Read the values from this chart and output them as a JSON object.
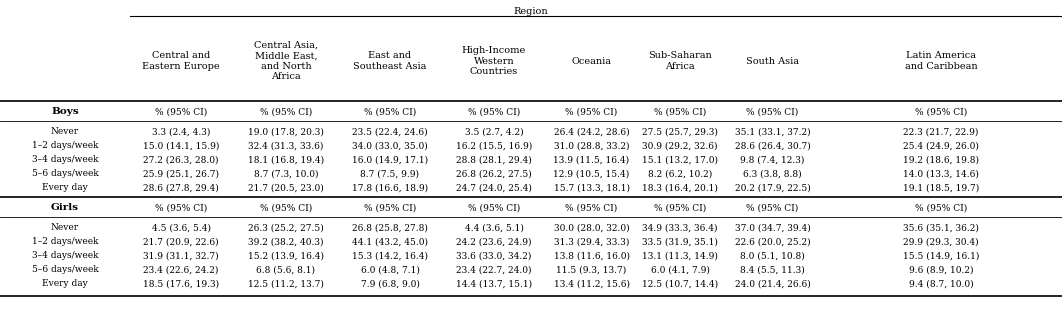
{
  "title": "Region",
  "col_headers": [
    "",
    "Central and\nEastern Europe",
    "Central Asia,\nMiddle East,\nand North\nAfrica",
    "East and\nSoutheast Asia",
    "High-Income\nWestern\nCountries",
    "Oceania",
    "Sub-Saharan\nAfrica",
    "South Asia",
    "Latin America\nand Caribbean"
  ],
  "unit_row": "% (95% CI)",
  "boys_rows": [
    [
      "Never",
      "3.3 (2.4, 4.3)",
      "19.0 (17.8, 20.3)",
      "23.5 (22.4, 24.6)",
      "3.5 (2.7, 4.2)",
      "26.4 (24.2, 28.6)",
      "27.5 (25.7, 29.3)",
      "35.1 (33.1, 37.2)",
      "22.3 (21.7, 22.9)"
    ],
    [
      "1–2 days/week",
      "15.0 (14.1, 15.9)",
      "32.4 (31.3, 33.6)",
      "34.0 (33.0, 35.0)",
      "16.2 (15.5, 16.9)",
      "31.0 (28.8, 33.2)",
      "30.9 (29.2, 32.6)",
      "28.6 (26.4, 30.7)",
      "25.4 (24.9, 26.0)"
    ],
    [
      "3–4 days/week",
      "27.2 (26.3, 28.0)",
      "18.1 (16.8, 19.4)",
      "16.0 (14.9, 17.1)",
      "28.8 (28.1, 29.4)",
      "13.9 (11.5, 16.4)",
      "15.1 (13.2, 17.0)",
      "9.8 (7.4, 12.3)",
      "19.2 (18.6, 19.8)"
    ],
    [
      "5–6 days/week",
      "25.9 (25.1, 26.7)",
      "8.7 (7.3, 10.0)",
      "8.7 (7.5, 9.9)",
      "26.8 (26.2, 27.5)",
      "12.9 (10.5, 15.4)",
      "8.2 (6.2, 10.2)",
      "6.3 (3.8, 8.8)",
      "14.0 (13.3, 14.6)"
    ],
    [
      "Every day",
      "28.6 (27.8, 29.4)",
      "21.7 (20.5, 23.0)",
      "17.8 (16.6, 18.9)",
      "24.7 (24.0, 25.4)",
      "15.7 (13.3, 18.1)",
      "18.3 (16.4, 20.1)",
      "20.2 (17.9, 22.5)",
      "19.1 (18.5, 19.7)"
    ]
  ],
  "girls_rows": [
    [
      "Never",
      "4.5 (3.6, 5.4)",
      "26.3 (25.2, 27.5)",
      "26.8 (25.8, 27.8)",
      "4.4 (3.6, 5.1)",
      "30.0 (28.0, 32.0)",
      "34.9 (33.3, 36.4)",
      "37.0 (34.7, 39.4)",
      "35.6 (35.1, 36.2)"
    ],
    [
      "1–2 days/week",
      "21.7 (20.9, 22.6)",
      "39.2 (38.2, 40.3)",
      "44.1 (43.2, 45.0)",
      "24.2 (23.6, 24.9)",
      "31.3 (29.4, 33.3)",
      "33.5 (31.9, 35.1)",
      "22.6 (20.0, 25.2)",
      "29.9 (29.3, 30.4)"
    ],
    [
      "3–4 days/week",
      "31.9 (31.1, 32.7)",
      "15.2 (13.9, 16.4)",
      "15.3 (14.2, 16.4)",
      "33.6 (33.0, 34.2)",
      "13.8 (11.6, 16.0)",
      "13.1 (11.3, 14.9)",
      "8.0 (5.1, 10.8)",
      "15.5 (14.9, 16.1)"
    ],
    [
      "5–6 days/week",
      "23.4 (22.6, 24.2)",
      "6.8 (5.6, 8.1)",
      "6.0 (4.8, 7.1)",
      "23.4 (22.7, 24.0)",
      "11.5 (9.3, 13.7)",
      "6.0 (4.1, 7.9)",
      "8.4 (5.5, 11.3)",
      "9.6 (8.9, 10.2)"
    ],
    [
      "Every day",
      "18.5 (17.6, 19.3)",
      "12.5 (11.2, 13.7)",
      "7.9 (6.8, 9.0)",
      "14.4 (13.7, 15.1)",
      "13.4 (11.2, 15.6)",
      "12.5 (10.7, 14.4)",
      "24.0 (21.4, 26.6)",
      "9.4 (8.7, 10.0)"
    ]
  ]
}
